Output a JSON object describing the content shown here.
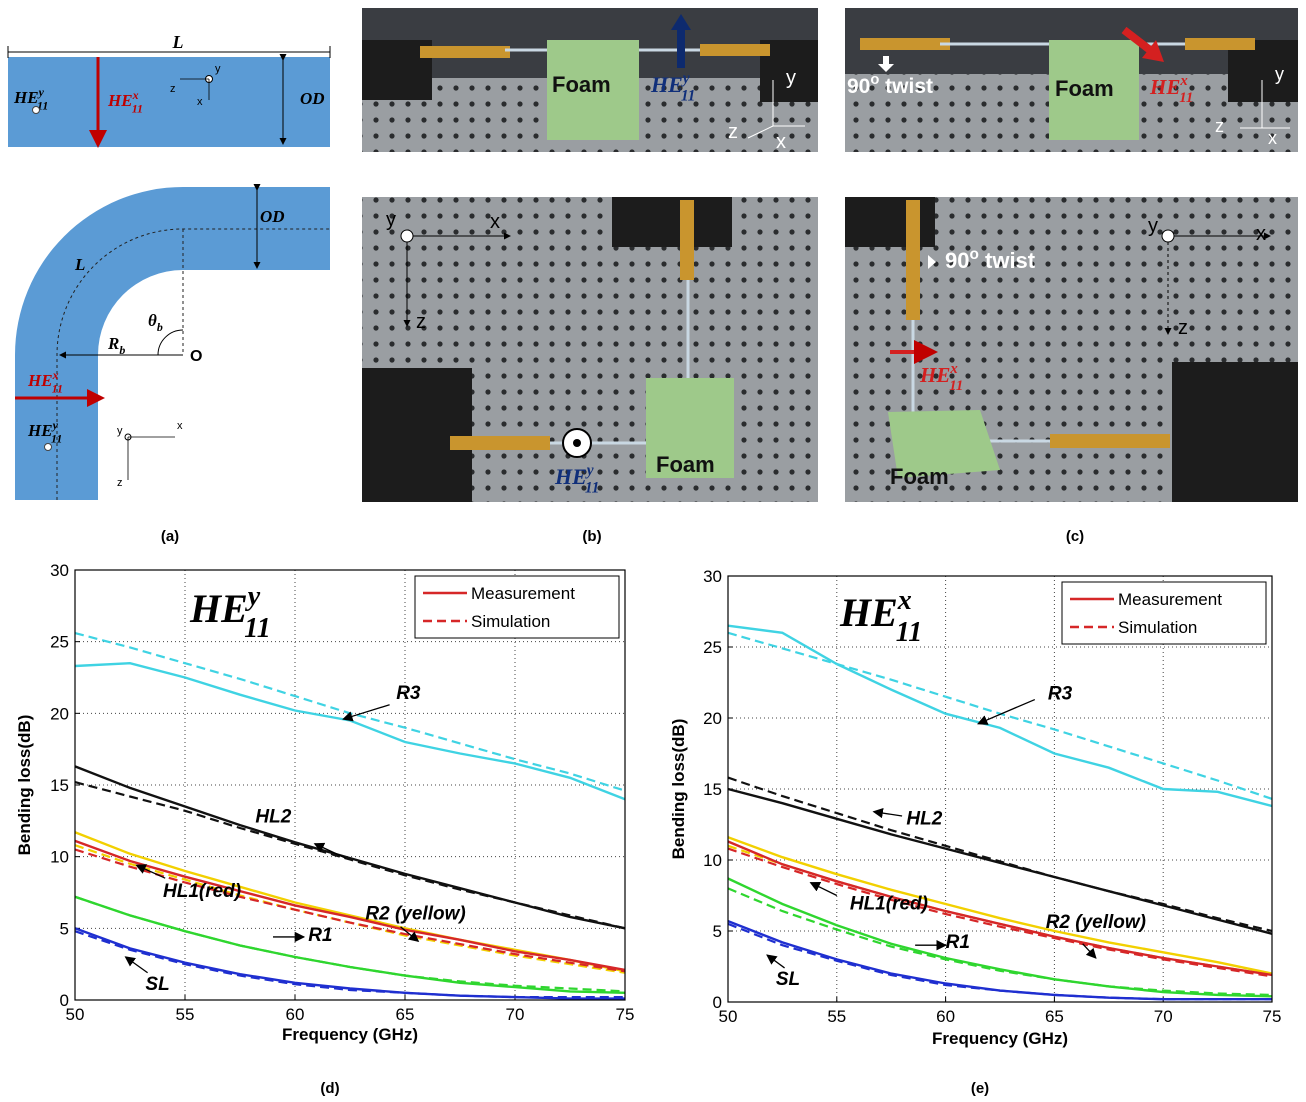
{
  "figure": {
    "a": {
      "label": "(a)",
      "texts": [
        "L",
        "OD",
        {
          "base": "HE",
          "sup": "y",
          "sub": "11"
        },
        {
          "base": "HE",
          "sup": "x",
          "sub": "11"
        },
        "y",
        "z",
        "x",
        "OD",
        "L",
        {
          "base": "θ",
          "sub": "b"
        },
        {
          "base": "R",
          "sub": "b"
        },
        "O",
        {
          "base": "HE",
          "sup": "x",
          "sub": "11"
        },
        {
          "base": "HE",
          "sup": "y",
          "sub": "11"
        },
        "y",
        "x",
        "z"
      ]
    },
    "b": {
      "label": "(b)",
      "texts": [
        "Foam",
        {
          "base": "HE",
          "sup": "y",
          "sub": "11"
        },
        "y",
        "z",
        "x",
        "y",
        "x",
        "z",
        {
          "base": "HE",
          "sup": "y",
          "sub": "11"
        },
        "Foam"
      ]
    },
    "c": {
      "label": "(c)",
      "texts": [
        {
          "base": "90",
          "sup": "o",
          "rest": " twist"
        },
        "Foam",
        {
          "base": "HE",
          "sup": "x",
          "sub": "11"
        },
        "y",
        "z",
        "x",
        "y",
        "x",
        "z",
        {
          "base": "90",
          "sup": "o",
          "rest": " twist"
        },
        {
          "base": "HE",
          "sup": "x",
          "sub": "11"
        },
        "Foam"
      ]
    }
  },
  "chart_data": [
    {
      "type": "line",
      "panel_label": "(d)",
      "title": {
        "base": "HE",
        "sup": "y",
        "sub": "11"
      },
      "x_label": "Frequency (GHz)",
      "y_label": "Bending loss(dB)",
      "xlim": [
        50,
        75
      ],
      "ylim": [
        0,
        30
      ],
      "xticks": [
        50,
        55,
        60,
        65,
        70,
        75
      ],
      "yticks": [
        0,
        5,
        10,
        15,
        20,
        25,
        30
      ],
      "grid": true,
      "legend_position": "upper right",
      "legend": [
        {
          "label": "Measurement",
          "color": "#d62728",
          "dash": false
        },
        {
          "label": "Simulation",
          "color": "#d62728",
          "dash": true
        }
      ],
      "annotations": [
        "R3",
        "HL2",
        "HL1(red)",
        "R2 (yellow)",
        "R1",
        "SL"
      ],
      "x": [
        50,
        52.5,
        55,
        57.5,
        60,
        62.5,
        65,
        67.5,
        70,
        72.5,
        75
      ],
      "series": [
        {
          "color": "#3fd3e3",
          "dash": false,
          "values": [
            23.3,
            23.5,
            22.5,
            21.3,
            20.2,
            19.5,
            18,
            17.2,
            16.5,
            15.5,
            14
          ]
        },
        {
          "color": "#3fd3e3",
          "dash": true,
          "values": [
            25.6,
            24.6,
            23.5,
            22.4,
            21.2,
            20,
            19,
            17.9,
            16.8,
            15.8,
            14.6
          ]
        },
        {
          "color": "#111111",
          "dash": false,
          "values": [
            16.3,
            14.8,
            13.5,
            12.2,
            11,
            9.9,
            8.8,
            7.8,
            6.8,
            5.8,
            5
          ]
        },
        {
          "color": "#111111",
          "dash": true,
          "values": [
            15.2,
            14.2,
            13.2,
            12,
            10.9,
            9.8,
            8.7,
            7.7,
            6.8,
            5.9,
            5
          ]
        },
        {
          "color": "#f2d000",
          "dash": false,
          "values": [
            11.7,
            10.2,
            9,
            7.9,
            6.8,
            5.9,
            5,
            4.2,
            3.5,
            2.8,
            2
          ]
        },
        {
          "color": "#f2d000",
          "dash": true,
          "values": [
            10.8,
            9.5,
            8.4,
            7.3,
            6.3,
            5.4,
            4.5,
            3.8,
            3.1,
            2.5,
            1.9
          ]
        },
        {
          "color": "#d62728",
          "dash": false,
          "values": [
            11.1,
            9.7,
            8.6,
            7.6,
            6.6,
            5.8,
            4.9,
            4.2,
            3.4,
            2.8,
            2.1
          ]
        },
        {
          "color": "#d62728",
          "dash": true,
          "values": [
            10.5,
            9.3,
            8.2,
            7.2,
            6.3,
            5.4,
            4.6,
            3.9,
            3.2,
            2.6,
            2
          ]
        },
        {
          "color": "#2fd62f",
          "dash": false,
          "values": [
            7.2,
            5.9,
            4.8,
            3.8,
            3,
            2.3,
            1.7,
            1.2,
            0.9,
            0.6,
            0.5
          ]
        },
        {
          "color": "#2fd62f",
          "dash": true,
          "values": [
            7.2,
            5.9,
            4.8,
            3.8,
            3,
            2.3,
            1.7,
            1.3,
            1,
            0.8,
            0.6
          ]
        },
        {
          "color": "#1f2fd0",
          "dash": false,
          "values": [
            5,
            3.6,
            2.6,
            1.8,
            1.2,
            0.8,
            0.5,
            0.3,
            0.2,
            0.1,
            0.1
          ]
        },
        {
          "color": "#1f2fd0",
          "dash": true,
          "values": [
            4.8,
            3.5,
            2.5,
            1.7,
            1.1,
            0.7,
            0.5,
            0.3,
            0.2,
            0.2,
            0.2
          ]
        }
      ]
    },
    {
      "type": "line",
      "panel_label": "(e)",
      "title": {
        "base": "HE",
        "sup": "x",
        "sub": "11"
      },
      "x_label": "Frequency (GHz)",
      "y_label": "Bending loss(dB)",
      "xlim": [
        50,
        75
      ],
      "ylim": [
        0,
        30
      ],
      "xticks": [
        50,
        55,
        60,
        65,
        70,
        75
      ],
      "yticks": [
        0,
        5,
        10,
        15,
        20,
        25,
        30
      ],
      "grid": true,
      "legend_position": "upper right",
      "legend": [
        {
          "label": "Measurement",
          "color": "#d62728",
          "dash": false
        },
        {
          "label": "Simulation",
          "color": "#d62728",
          "dash": true
        }
      ],
      "annotations": [
        "R3",
        "HL2",
        "HL1(red)",
        "R2 (yellow)",
        "R1",
        "SL"
      ],
      "x": [
        50,
        52.5,
        55,
        57.5,
        60,
        62.5,
        65,
        67.5,
        70,
        72.5,
        75
      ],
      "series": [
        {
          "color": "#3fd3e3",
          "dash": false,
          "values": [
            26.5,
            26,
            23.8,
            22,
            20.3,
            19.3,
            17.5,
            16.5,
            15,
            14.8,
            13.8
          ]
        },
        {
          "color": "#3fd3e3",
          "dash": true,
          "values": [
            26,
            24.9,
            23.8,
            22.7,
            21.5,
            20.3,
            19.2,
            18,
            16.8,
            15.6,
            14.3
          ]
        },
        {
          "color": "#111111",
          "dash": false,
          "values": [
            15,
            14,
            12.9,
            11.8,
            10.8,
            9.8,
            8.8,
            7.8,
            6.8,
            5.8,
            4.8
          ]
        },
        {
          "color": "#111111",
          "dash": true,
          "values": [
            15.8,
            14.5,
            13.3,
            12.1,
            11,
            9.9,
            8.8,
            7.8,
            6.9,
            5.9,
            5
          ]
        },
        {
          "color": "#f2d000",
          "dash": false,
          "values": [
            11.6,
            10.2,
            9,
            7.9,
            6.9,
            5.9,
            5,
            4.2,
            3.5,
            2.8,
            2
          ]
        },
        {
          "color": "#f2d000",
          "dash": true,
          "values": [
            11,
            9.7,
            8.5,
            7.4,
            6.4,
            5.5,
            4.6,
            3.8,
            3.1,
            2.5,
            1.9
          ]
        },
        {
          "color": "#d62728",
          "dash": false,
          "values": [
            11.3,
            9.7,
            8.5,
            7.4,
            6.4,
            5.5,
            4.6,
            3.8,
            3.1,
            2.5,
            1.9
          ]
        },
        {
          "color": "#d62728",
          "dash": true,
          "values": [
            10.8,
            9.5,
            8.3,
            7.2,
            6.2,
            5.3,
            4.5,
            3.7,
            3,
            2.4,
            1.8
          ]
        },
        {
          "color": "#2fd62f",
          "dash": false,
          "values": [
            8.7,
            6.9,
            5.4,
            4.1,
            3.1,
            2.3,
            1.6,
            1.1,
            0.7,
            0.5,
            0.4
          ]
        },
        {
          "color": "#2fd62f",
          "dash": true,
          "values": [
            8,
            6.4,
            5.1,
            3.9,
            3,
            2.2,
            1.6,
            1.1,
            0.8,
            0.6,
            0.5
          ]
        },
        {
          "color": "#1f2fd0",
          "dash": false,
          "values": [
            5.7,
            4.2,
            3,
            2,
            1.3,
            0.8,
            0.5,
            0.3,
            0.2,
            0.2,
            0.2
          ]
        },
        {
          "color": "#1f2fd0",
          "dash": true,
          "values": [
            5.5,
            4,
            2.9,
            1.9,
            1.2,
            0.8,
            0.5,
            0.3,
            0.2,
            0.2,
            0.2
          ]
        }
      ]
    }
  ]
}
